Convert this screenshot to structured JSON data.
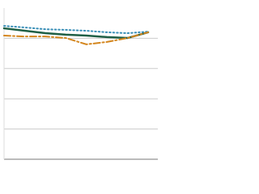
{
  "chart_data": {
    "type": "line",
    "categories": [
      null,
      null,
      null,
      null,
      null,
      null,
      null,
      null
    ],
    "series": [
      {
        "color": "#1f5f45",
        "style": "solid",
        "values": [
          4.33,
          4.25,
          4.17,
          4.12,
          4.09,
          4.04,
          4.01,
          4.2
        ]
      },
      {
        "color": "#3a8fb7",
        "style": "dotted",
        "values": [
          4.41,
          4.36,
          4.3,
          4.28,
          4.25,
          4.2,
          4.17,
          4.22
        ]
      },
      {
        "color": "#d4861e",
        "style": "dashdot",
        "values": [
          4.09,
          4.06,
          4.06,
          4.01,
          3.8,
          3.88,
          4.01,
          4.2
        ]
      }
    ],
    "ylim": [
      0,
      5
    ],
    "yticks": [
      0,
      1,
      2,
      3,
      4
    ],
    "grid": true
  }
}
